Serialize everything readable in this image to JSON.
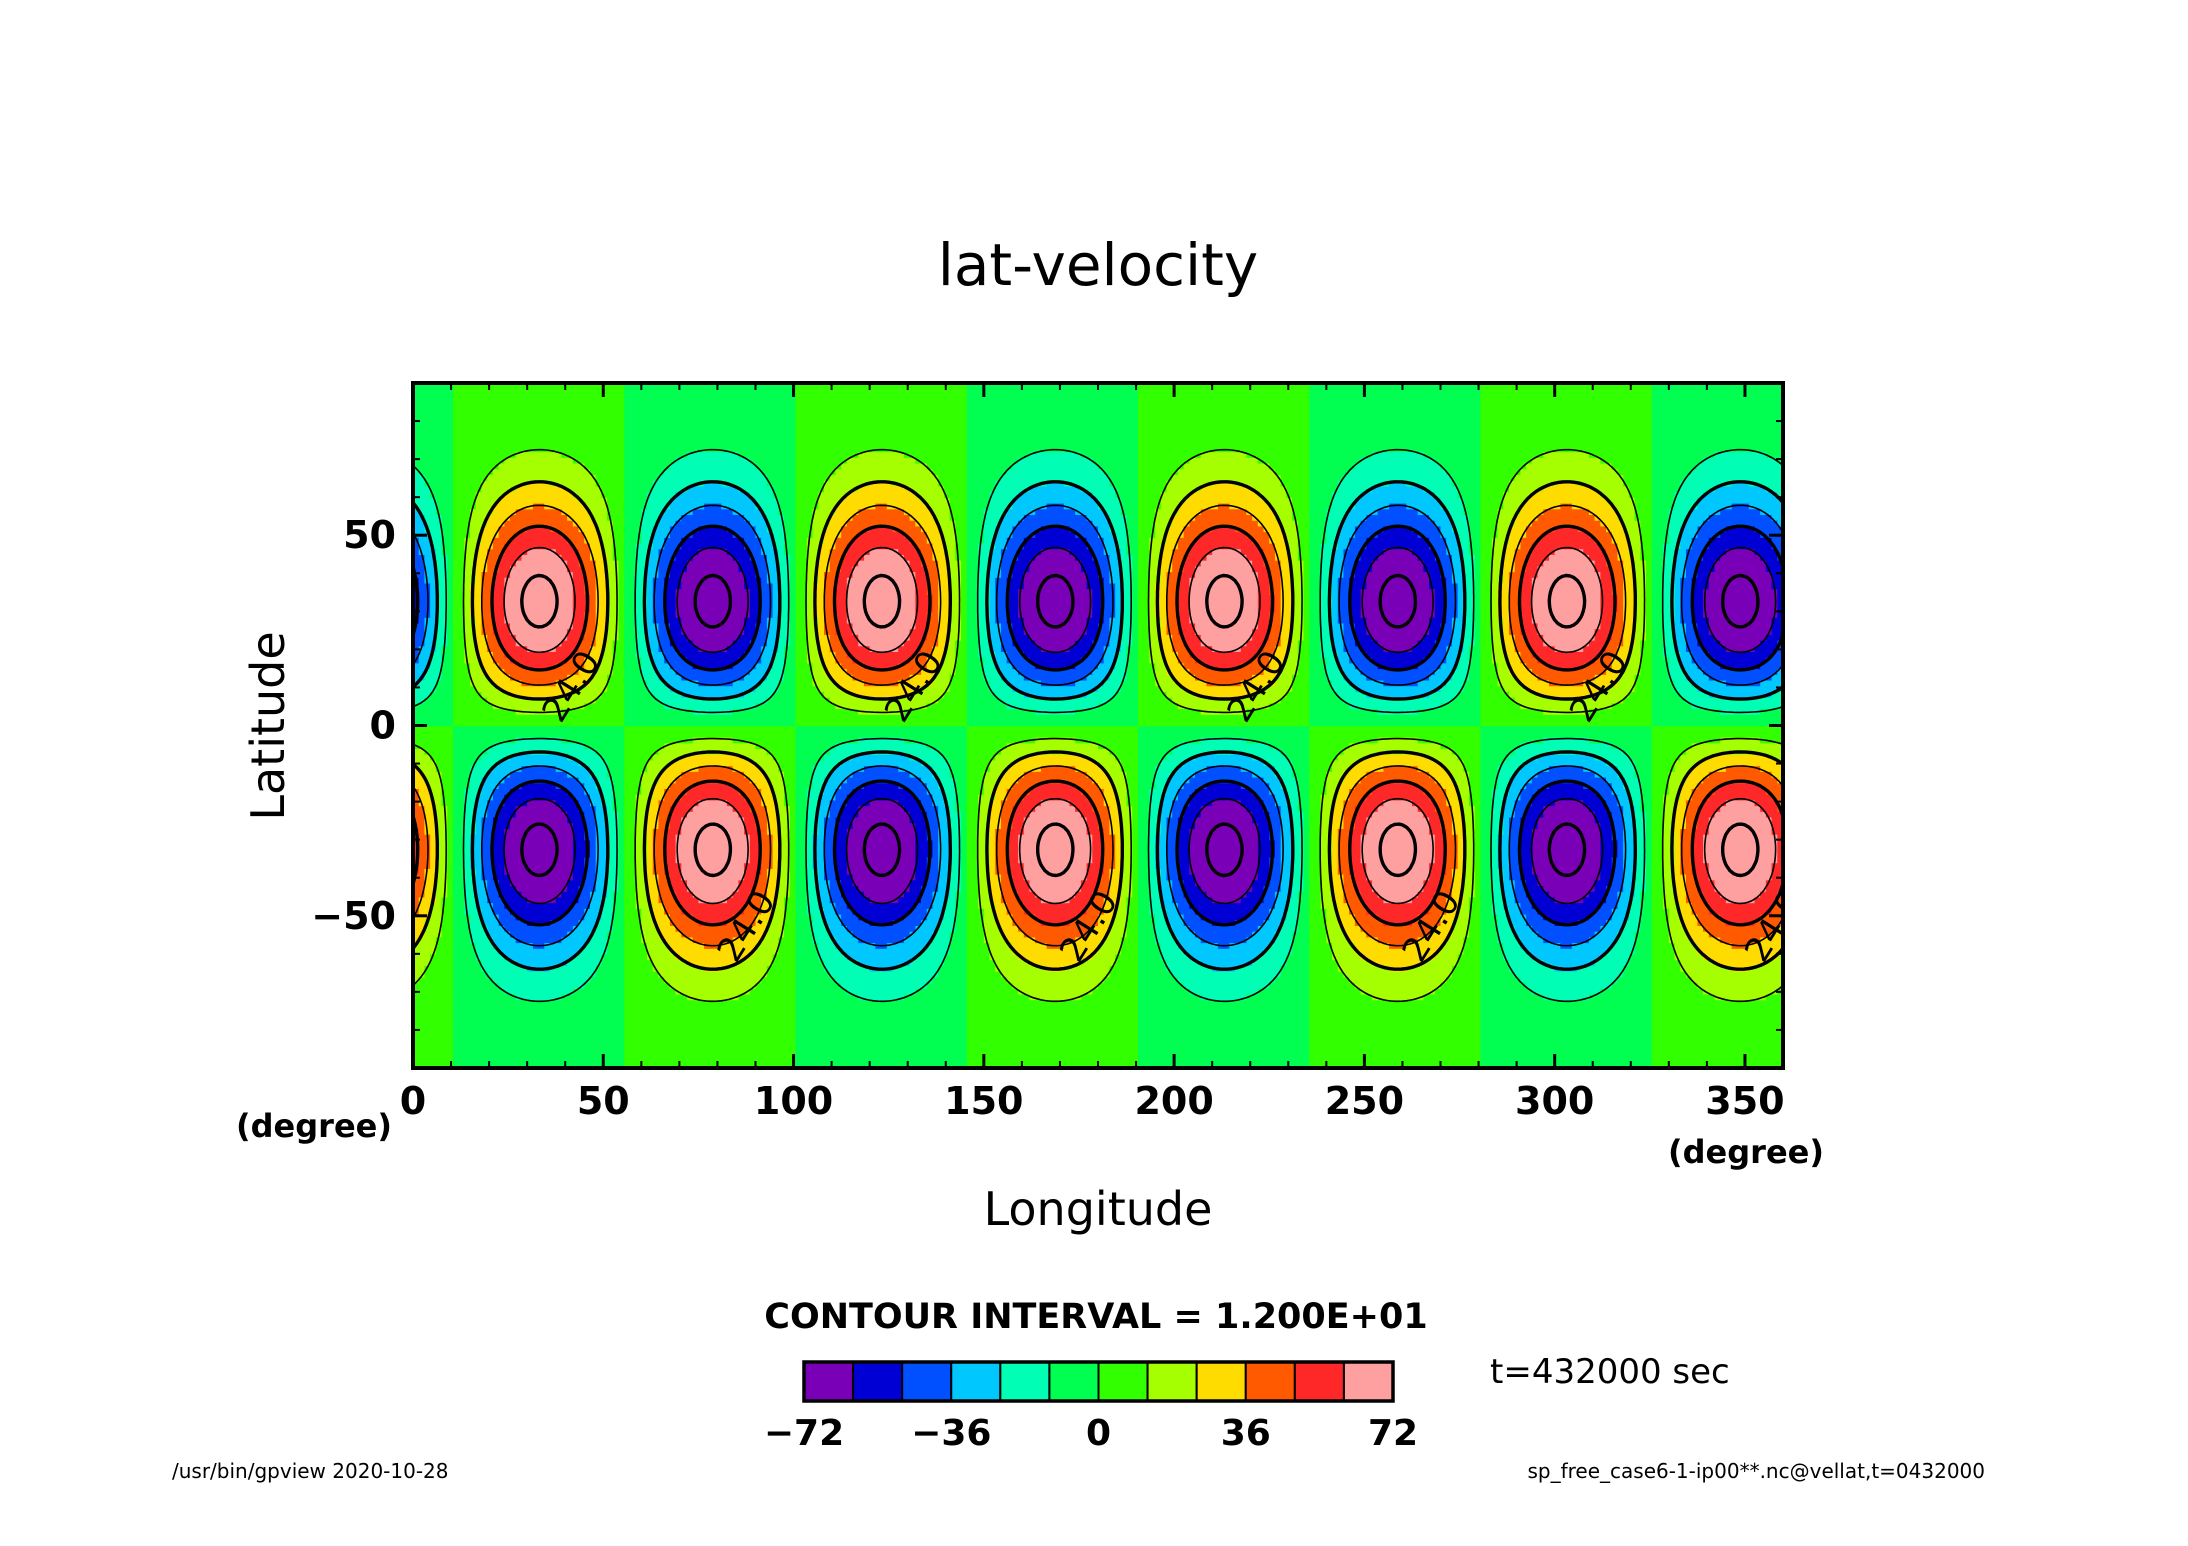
{
  "chart_data": {
    "type": "heatmap",
    "title": "lat-velocity",
    "xlabel": "Longitude",
    "ylabel": "Latitude",
    "x_unit": "(degree)",
    "y_unit": "(degree)",
    "xlim": [
      0,
      360
    ],
    "ylim": [
      -90,
      90
    ],
    "x_ticks": [
      0,
      50,
      100,
      150,
      200,
      250,
      300,
      350
    ],
    "y_ticks": [
      50,
      0,
      -50
    ],
    "x_tick_labels": [
      "0",
      "50",
      "100",
      "150",
      "200",
      "250",
      "300",
      "350"
    ],
    "y_tick_labels": [
      "50",
      "0",
      "−50"
    ],
    "field": {
      "wavenumber": 4,
      "peak_latitudes": [
        32,
        -32
      ],
      "north_max_longitudes": [
        33,
        123,
        213,
        303
      ],
      "north_min_longitudes": [
        79,
        169,
        259,
        349
      ],
      "south_max_longitudes": [
        79,
        169,
        259,
        349
      ],
      "south_min_longitudes": [
        33,
        123,
        213,
        303
      ],
      "amplitude": 80
    },
    "contour_levels": [
      -72,
      -60,
      -48,
      -36,
      -24,
      -12,
      0,
      12,
      24,
      36,
      48,
      60,
      72
    ],
    "contour_label": "24.0",
    "contour_interval_text": "CONTOUR INTERVAL = 1.200E+01",
    "colorbar": {
      "colors": [
        "#7a00b8",
        "#0000d4",
        "#0050ff",
        "#00c8ff",
        "#00ffb4",
        "#00ff50",
        "#32ff00",
        "#a5ff00",
        "#ffdc00",
        "#ff5a00",
        "#ff2828",
        "#ffa0a0"
      ],
      "tick_labels": [
        "−72",
        "−36",
        "0",
        "36",
        "72"
      ],
      "tick_values": [
        -72,
        -36,
        0,
        36,
        72
      ]
    },
    "time_label": "t=432000 sec",
    "footer_left": "/usr/bin/gpview   2020-10-28",
    "footer_right": "sp_free_case6-1-ip00**.nc@vellat,t=0432000"
  }
}
